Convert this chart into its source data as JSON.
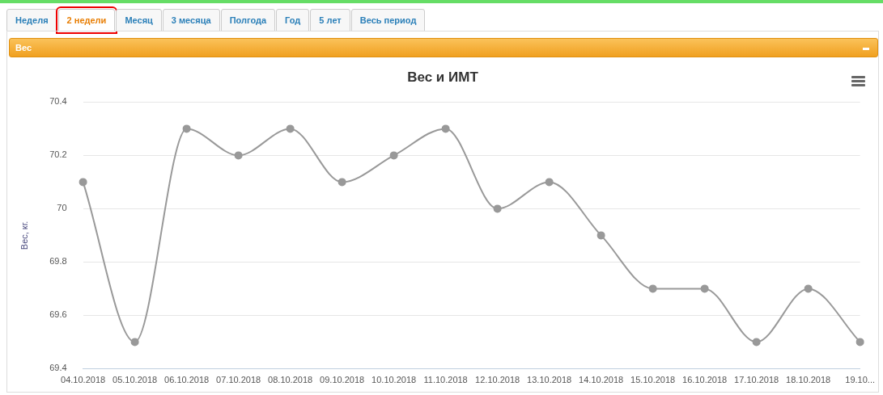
{
  "chart_data": [
    {
      "type": "other",
      "title": "Вес",
      "annotations": [
        "Неделя",
        "2 недели",
        "Месяц",
        "3 месяца",
        "Полгода",
        "Год",
        "5 лет",
        "Весь период"
      ]
    },
    {
      "type": "line",
      "title": "Вес и ИМТ",
      "ylabel": "Вес, кг.",
      "categories": [
        "04.10.2018",
        "05.10.2018",
        "06.10.2018",
        "07.10.2018",
        "08.10.2018",
        "09.10.2018",
        "10.10.2018",
        "11.10.2018",
        "12.10.2018",
        "13.10.2018",
        "14.10.2018",
        "15.10.2018",
        "16.10.2018",
        "17.10.2018",
        "18.10.2018",
        "19.10..."
      ],
      "series": [
        {
          "color": "#999999",
          "values": [
            70.1,
            69.5,
            70.3,
            70.2,
            70.3,
            70.1,
            70.2,
            70.3,
            70.0,
            70.1,
            69.9,
            69.7,
            69.7,
            69.5,
            69.7,
            69.5
          ]
        }
      ],
      "ylim": [
        69.4,
        70.4
      ],
      "yticks": [
        69.4,
        69.6,
        69.8,
        70,
        70.2,
        70.4
      ],
      "grid": "y",
      "marker": "circle",
      "line_style": "solid",
      "legend": false
    }
  ]
}
